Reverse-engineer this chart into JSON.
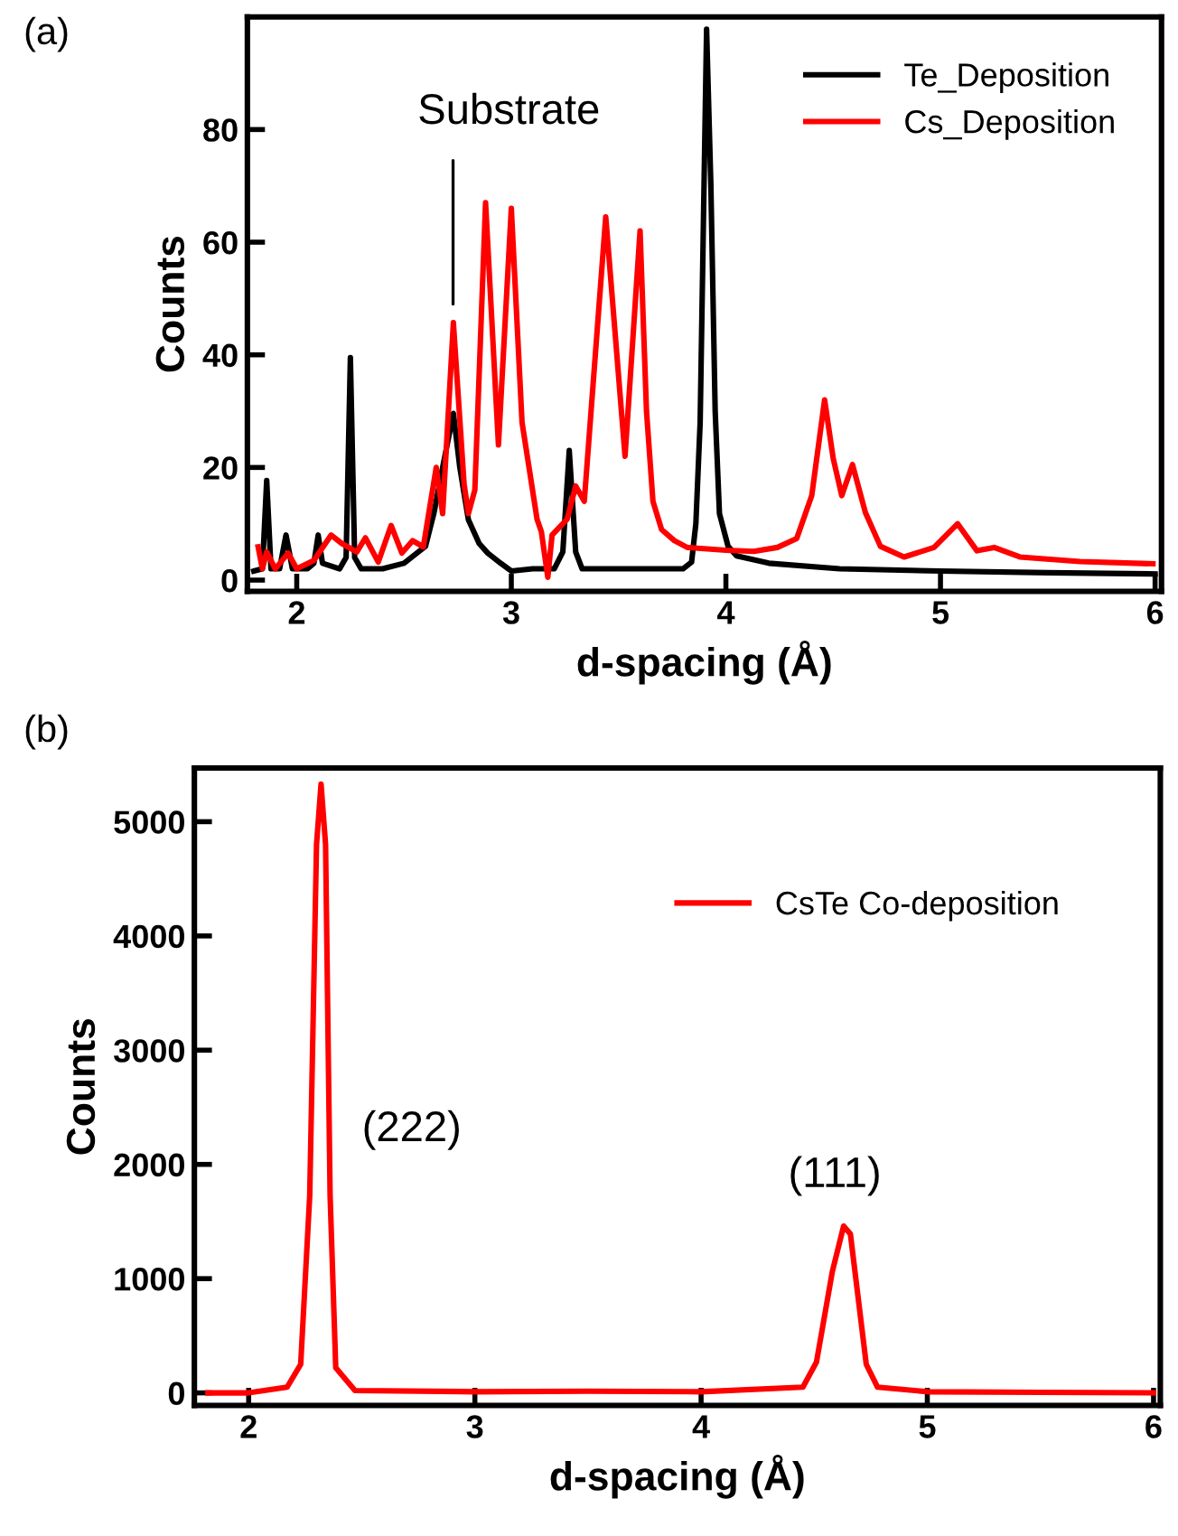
{
  "chart_data": [
    {
      "type": "line",
      "xlabel": "d-spacing (Å)",
      "ylabel": "Counts",
      "xlim": [
        1.77,
        6.03
      ],
      "ylim": [
        -2,
        100
      ],
      "xticks": [
        2,
        3,
        4,
        5,
        6
      ],
      "yticks": [
        0,
        20,
        40,
        60,
        80
      ],
      "grid": false,
      "legend": "top right",
      "marker": "none",
      "line_style": "solid",
      "annotations": [
        "(a)",
        "Substrate"
      ],
      "series": [
        {
          "name": "Te_Deposition",
          "color": "#000000",
          "x": [
            1.8,
            1.84,
            1.86,
            1.88,
            1.92,
            1.95,
            1.98,
            2.05,
            2.08,
            2.1,
            2.12,
            2.2,
            2.23,
            2.25,
            2.27,
            2.3,
            2.4,
            2.5,
            2.6,
            2.64,
            2.68,
            2.73,
            2.76,
            2.8,
            2.85,
            2.89,
            2.95,
            3.0,
            3.1,
            3.2,
            3.24,
            3.27,
            3.3,
            3.33,
            3.4,
            3.6,
            3.8,
            3.84,
            3.86,
            3.88,
            3.91,
            3.93,
            3.95,
            3.97,
            4.01,
            4.05,
            4.2,
            4.53,
            5.0,
            5.5,
            6.0
          ],
          "values": [
            1.6,
            2,
            17.7,
            2,
            2,
            8,
            2,
            2,
            3,
            8,
            3,
            2,
            4,
            39.5,
            4,
            2,
            2,
            3,
            6,
            12,
            20,
            29.6,
            20,
            10.7,
            6.5,
            4.8,
            3,
            1.6,
            2,
            2,
            5,
            23,
            5,
            2,
            2,
            2,
            2,
            3.2,
            10,
            28,
            97.8,
            70,
            30,
            11.8,
            6,
            4.3,
            3,
            2,
            1.6,
            1.3,
            1.1
          ]
        },
        {
          "name": "Cs_Deposition",
          "color": "#ff0000",
          "x": [
            1.82,
            1.84,
            1.86,
            1.9,
            1.96,
            2.0,
            2.08,
            2.16,
            2.21,
            2.28,
            2.32,
            2.38,
            2.44,
            2.49,
            2.54,
            2.59,
            2.65,
            2.68,
            2.73,
            2.78,
            2.8,
            2.83,
            2.88,
            2.94,
            3.0,
            3.05,
            3.12,
            3.14,
            3.17,
            3.19,
            3.26,
            3.3,
            3.34,
            3.44,
            3.53,
            3.6,
            3.63,
            3.66,
            3.7,
            3.76,
            3.82,
            4.0,
            4.13,
            4.24,
            4.33,
            4.4,
            4.46,
            4.5,
            4.54,
            4.59,
            4.65,
            4.72,
            4.83,
            4.97,
            5.08,
            5.17,
            5.25,
            5.37,
            5.65,
            5.99
          ],
          "values": [
            5.9,
            2,
            5,
            2,
            4.8,
            2,
            3.5,
            8,
            6.5,
            5,
            7.5,
            3.2,
            9.7,
            4.8,
            7,
            5.9,
            20,
            11.8,
            45.7,
            17,
            11.8,
            16,
            67,
            24,
            66,
            28,
            10.8,
            8.6,
            0.5,
            8,
            10.8,
            16.7,
            14,
            64.5,
            22,
            62,
            30,
            14,
            9,
            7,
            5.8,
            5.3,
            5.1,
            5.8,
            7.4,
            15,
            32,
            21.6,
            15,
            20.5,
            12,
            6,
            4.1,
            5.8,
            10,
            5.2,
            5.8,
            4.1,
            3.3,
            2.9
          ]
        }
      ]
    },
    {
      "type": "line",
      "xlabel": "d-spacing (Å)",
      "ylabel": "Counts",
      "xlim": [
        1.76,
        6.03
      ],
      "ylim": [
        -110,
        5470
      ],
      "xticks": [
        2,
        3,
        4,
        5,
        6
      ],
      "yticks": [
        0,
        1000,
        2000,
        3000,
        4000,
        5000
      ],
      "grid": false,
      "legend": "top right",
      "marker": "none",
      "line_style": "solid",
      "annotations": [
        "(b)",
        "(222)",
        "(111)"
      ],
      "series": [
        {
          "name": "CsTe Co-deposition",
          "color": "#ff0000",
          "x": [
            1.82,
            2.0,
            2.17,
            2.23,
            2.27,
            2.3,
            2.32,
            2.34,
            2.36,
            2.385,
            2.47,
            3.0,
            3.5,
            4.0,
            4.45,
            4.51,
            4.58,
            4.63,
            4.66,
            4.7,
            4.73,
            4.78,
            5.0,
            5.5,
            6.0
          ],
          "values": [
            0,
            0,
            50,
            250,
            1730,
            4800,
            5330,
            4800,
            1730,
            220,
            20,
            10,
            15,
            10,
            50,
            270,
            1060,
            1460,
            1390,
            740,
            250,
            50,
            10,
            5,
            0
          ]
        }
      ]
    }
  ]
}
